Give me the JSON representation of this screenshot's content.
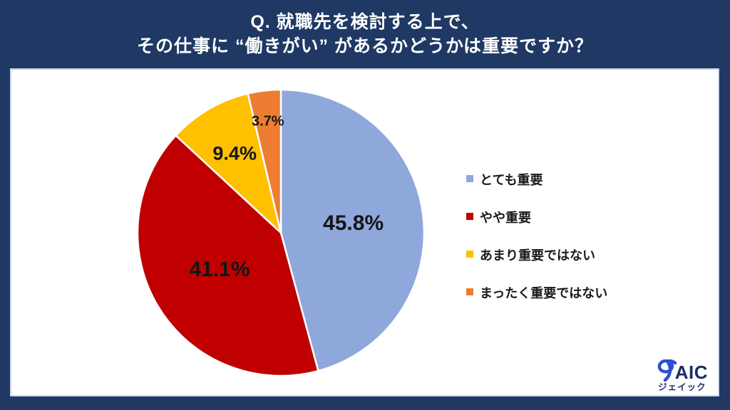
{
  "header": {
    "title_line1": "Q. 就職先を検討する上で、",
    "title_line2": "その仕事に “働きがい” があるかどうかは重要ですか？"
  },
  "colors": {
    "background_navy": "#1F3864",
    "panel_white": "#FFFFFF",
    "panel_border": "#C9D6ED",
    "label_text": "#151515",
    "title_text": "#FFFFFF",
    "logo_navy": "#1D2E63",
    "logo_blue": "#2B50D0"
  },
  "chart_data": {
    "type": "pie",
    "title": "Q. 就職先を検討する上で、その仕事に “働きがい” があるかどうかは重要ですか？",
    "start_angle_deg": 0,
    "direction": "clockwise",
    "legend_position": "right",
    "grid": false,
    "segments": [
      {
        "label": "とても重要",
        "value": 45.8,
        "value_label": "45.8%",
        "color": "#8FA8DC",
        "label_r": 0.51,
        "label_size": 30
      },
      {
        "label": "やや重要",
        "value": 41.1,
        "value_label": "41.1%",
        "color": "#C00000",
        "label_r": 0.5,
        "label_size": 30
      },
      {
        "label": "あまり重要ではない",
        "value": 9.4,
        "value_label": "9.4%",
        "color": "#FFC000",
        "label_r": 0.64,
        "label_size": 27
      },
      {
        "label": "まったく重要ではない",
        "value": 3.7,
        "value_label": "3.7%",
        "color": "#ED7D31",
        "label_r": 0.78,
        "label_size": 20
      }
    ]
  },
  "logo": {
    "name": "JAIC",
    "wordmark_rest": "AIC",
    "kana": "ジェイック"
  }
}
